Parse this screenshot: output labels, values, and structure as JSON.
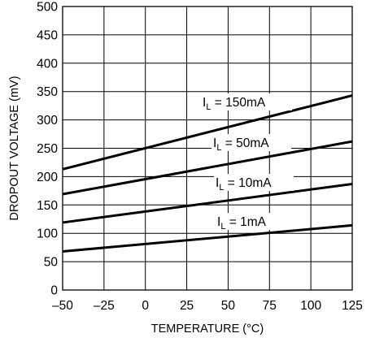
{
  "chart_data": {
    "type": "line",
    "xlabel": "TEMPERATURE (°C)",
    "ylabel": "DROPOUT VOLTAGE (mV)",
    "xlim": [
      -50,
      125
    ],
    "ylim": [
      0,
      500
    ],
    "x_ticks": [
      "–50",
      "–25",
      "0",
      "25",
      "50",
      "75",
      "100",
      "125"
    ],
    "y_ticks": [
      "0",
      "50",
      "100",
      "150",
      "200",
      "250",
      "300",
      "350",
      "400",
      "450",
      "500"
    ],
    "grid": true,
    "series": [
      {
        "name": "I_L = 150mA",
        "label_main": "I",
        "label_sub": "L",
        "label_rest": " = 150mA",
        "x": [
          -50,
          125
        ],
        "y": [
          213,
          343
        ]
      },
      {
        "name": "I_L = 50mA",
        "label_main": "I",
        "label_sub": "L",
        "label_rest": " = 50mA",
        "x": [
          -50,
          125
        ],
        "y": [
          169,
          262
        ]
      },
      {
        "name": "I_L = 10mA",
        "label_main": "I",
        "label_sub": "L",
        "label_rest": " = 10mA",
        "x": [
          -50,
          125
        ],
        "y": [
          119,
          187
        ]
      },
      {
        "name": "I_L = 1mA",
        "label_main": "I",
        "label_sub": "L",
        "label_rest": " = 1mA",
        "x": [
          -50,
          125
        ],
        "y": [
          68,
          114
        ]
      }
    ]
  }
}
